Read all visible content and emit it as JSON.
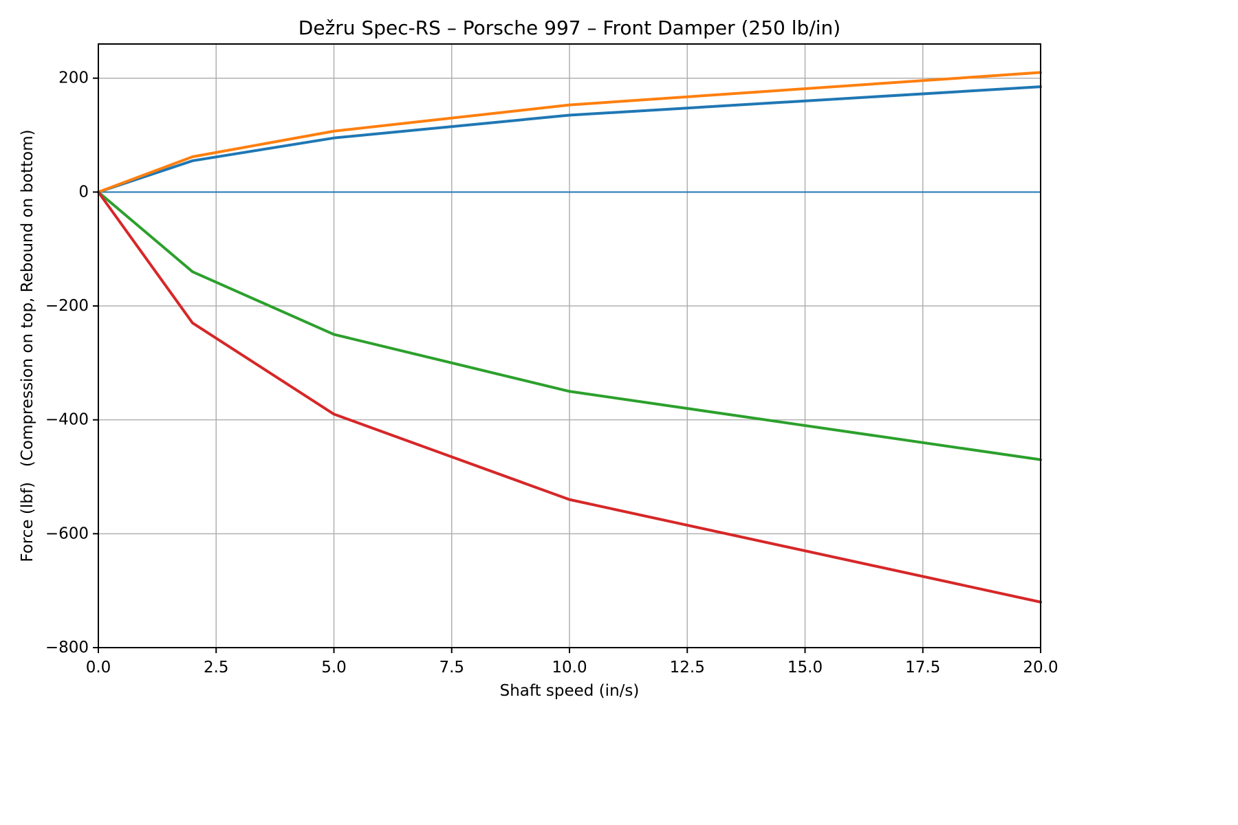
{
  "chart_data": {
    "type": "line",
    "title": "Dežru Spec-RS – Porsche 997 – Front Damper (250 lb/in)",
    "xlabel": "Shaft speed (in/s)",
    "ylabel": "Force (lbf)   (Compression on top, Rebound on bottom)",
    "xlim": [
      0,
      20
    ],
    "ylim": [
      -800,
      260
    ],
    "xticks": [
      0,
      2.5,
      5,
      7.5,
      10,
      12.5,
      15,
      17.5,
      20
    ],
    "xtick_labels": [
      "0.0",
      "2.5",
      "5.0",
      "7.5",
      "10.0",
      "12.5",
      "15.0",
      "17.5",
      "20.0"
    ],
    "yticks": [
      200,
      0,
      -200,
      -400,
      -600,
      -800
    ],
    "ytick_labels": [
      "200",
      "0",
      "−200",
      "−400",
      "−600",
      "−800"
    ],
    "grid": true,
    "grid_color": "#b0b0b0",
    "axes_color": "#000000",
    "legend": "none",
    "x": [
      0,
      2,
      5,
      10,
      20
    ],
    "series": [
      {
        "name": "zero-baseline-line",
        "color": "#1f77b4",
        "width": 2,
        "values": [
          0,
          0,
          0,
          0,
          0
        ]
      },
      {
        "name": "compression-lower-blue-line",
        "color": "#1f77b4",
        "width": 4,
        "values": [
          0,
          55,
          95,
          135,
          185
        ]
      },
      {
        "name": "compression-upper-orange-line",
        "color": "#ff7f0e",
        "width": 4,
        "values": [
          0,
          62,
          107,
          153,
          210
        ]
      },
      {
        "name": "rebound-upper-green-line",
        "color": "#2ca02c",
        "width": 4,
        "values": [
          0,
          -140,
          -250,
          -350,
          -470
        ]
      },
      {
        "name": "rebound-lower-red-line",
        "color": "#d62728",
        "width": 4,
        "values": [
          0,
          -230,
          -390,
          -540,
          -720
        ]
      }
    ]
  }
}
